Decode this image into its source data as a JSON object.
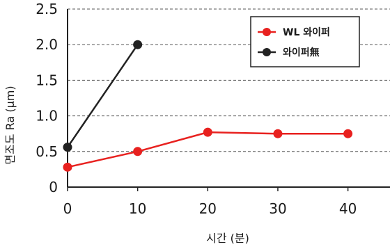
{
  "chart_data": {
    "type": "line",
    "x": [
      0,
      10,
      20,
      30,
      40
    ],
    "x_ticks": [
      "0",
      "10",
      "20",
      "30",
      "40"
    ],
    "y_ticks": [
      "0",
      "0.5",
      "1.0",
      "1.5",
      "2.0",
      "2.5"
    ],
    "xlim": [
      0,
      46
    ],
    "ylim": [
      0,
      2.5
    ],
    "xlabel": "시간 (분)",
    "ylabel": "면조도  Ra (μm)",
    "grid": "horizontal dashed",
    "legend_position": "top-right",
    "series": [
      {
        "name": "WL 와이퍼",
        "color": "#e8211f",
        "x": [
          0,
          10,
          20,
          30,
          40
        ],
        "values": [
          0.28,
          0.5,
          0.77,
          0.75,
          0.75
        ]
      },
      {
        "name": "와이퍼無",
        "color": "#222222",
        "x": [
          0,
          10
        ],
        "values": [
          0.56,
          2.0
        ]
      }
    ]
  }
}
